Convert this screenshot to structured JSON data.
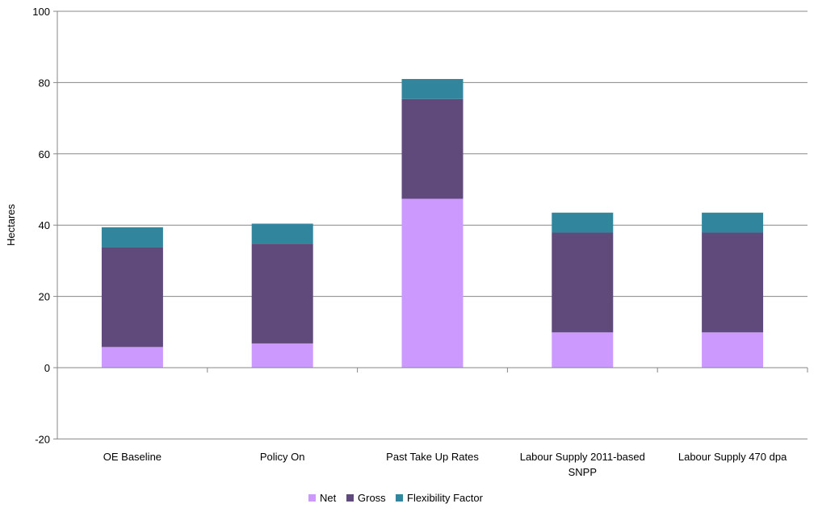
{
  "chart_data": {
    "type": "bar",
    "stacked": true,
    "categories": [
      [
        "OE Baseline"
      ],
      [
        "Policy On"
      ],
      [
        "Past Take Up Rates"
      ],
      [
        "Labour Supply 2011-based",
        "SNPP"
      ],
      [
        "Labour Supply 470 dpa"
      ]
    ],
    "series": [
      {
        "name": "Net",
        "color": "#cc99ff",
        "values": [
          5.8,
          6.8,
          47.4,
          9.9,
          9.9
        ]
      },
      {
        "name": "Gross",
        "color": "#604a7b",
        "values": [
          28.0,
          28.0,
          28.0,
          28.0,
          28.0
        ]
      },
      {
        "name": "Flexibility Factor",
        "color": "#31859c",
        "values": [
          5.6,
          5.6,
          5.6,
          5.6,
          5.6
        ]
      }
    ],
    "ylabel": "Hectares",
    "ylim": [
      -20,
      100
    ],
    "yticks": [
      -20,
      0,
      20,
      40,
      60,
      80,
      100
    ],
    "grid": true,
    "legend_position": "bottom"
  }
}
